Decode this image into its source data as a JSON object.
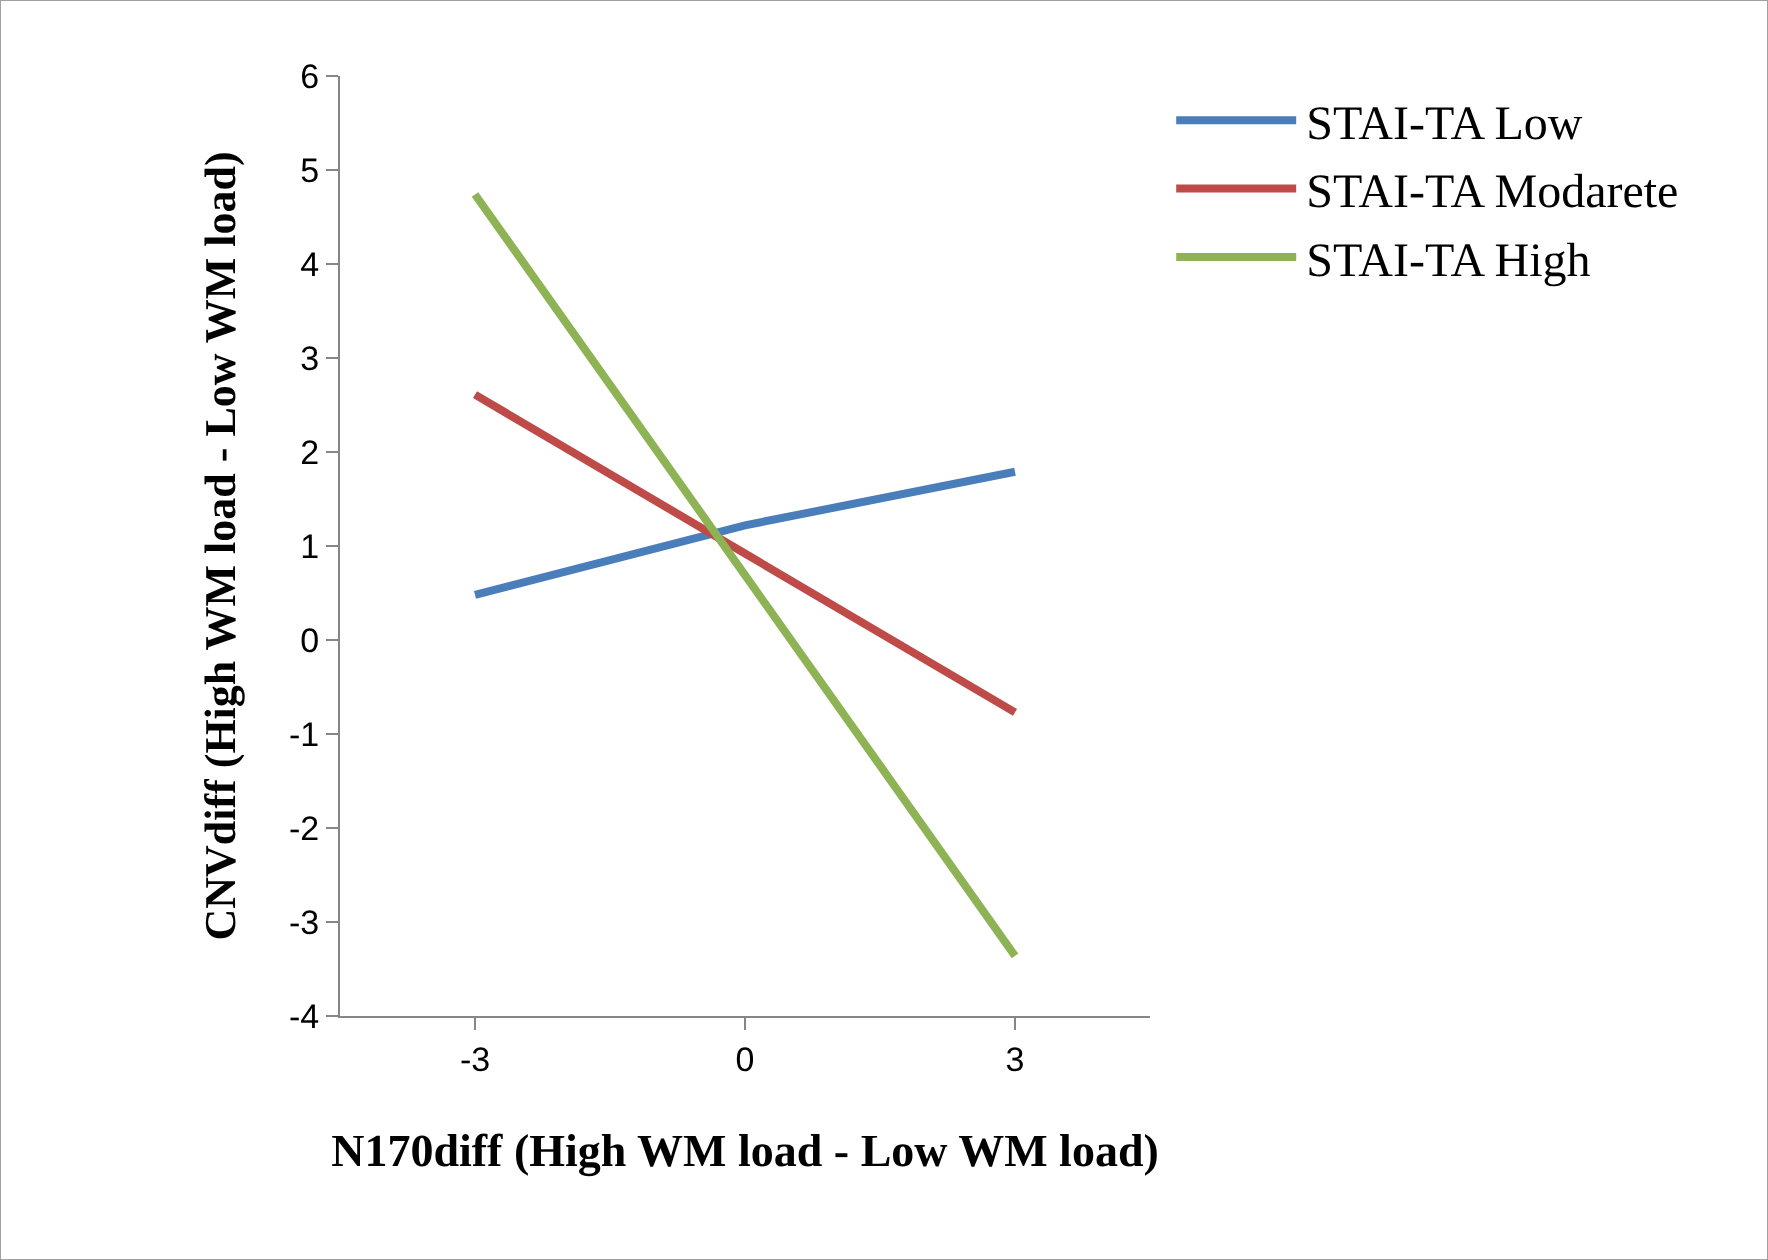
{
  "chart_data": {
    "type": "line",
    "xlabel": "N170diff (High WM load - Low WM load)",
    "ylabel": "CNVdiff (High WM load - Low WM load)",
    "categories": [
      "-3",
      "0",
      "3"
    ],
    "series": [
      {
        "name": "STAI-TA Low",
        "color": "#4a7ebb",
        "values": [
          0.48,
          1.22,
          1.79
        ]
      },
      {
        "name": "STAI-TA Modarete",
        "color": "#be4b48",
        "values": [
          2.61,
          0.92,
          -0.77
        ]
      },
      {
        "name": "STAI-TA High",
        "color": "#8db355",
        "values": [
          4.74,
          0.69,
          -3.36
        ]
      }
    ],
    "ylim": [
      -4,
      6
    ],
    "yticks": [
      -4,
      -3,
      -2,
      -1,
      0,
      1,
      2,
      3,
      4,
      5,
      6
    ],
    "legend": "right",
    "marker": "none",
    "line_style": "solid"
  }
}
